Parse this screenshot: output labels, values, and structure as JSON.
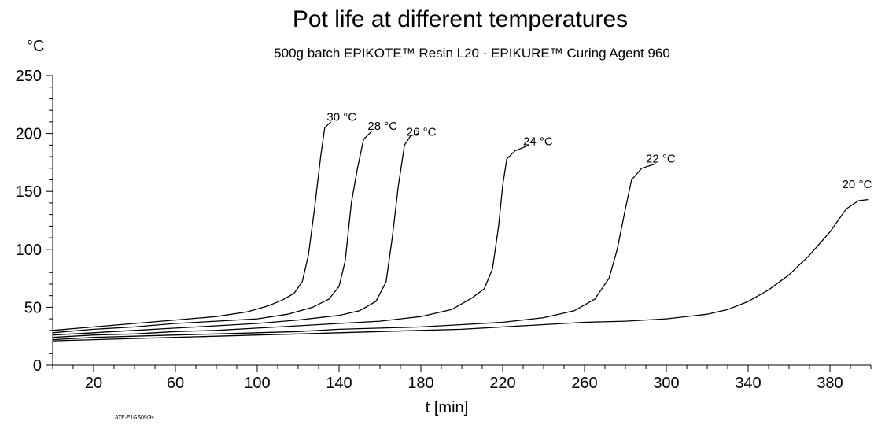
{
  "chart_data": {
    "type": "line",
    "title": "Pot life at different temperatures",
    "subtitle": "500g batch EPIKOTE™ Resin L20 - EPIKURE™ Curing Agent 960",
    "xlabel": "t [min]",
    "ylabel": "°C",
    "xlim": [
      0,
      400
    ],
    "ylim": [
      0,
      250
    ],
    "x_ticks": [
      20,
      60,
      100,
      140,
      180,
      220,
      260,
      300,
      340,
      380
    ],
    "y_ticks": [
      0,
      50,
      100,
      150,
      200,
      250
    ],
    "grid": false,
    "legend": "none",
    "footnote": "ATE-E1GS09/9s",
    "series": [
      {
        "name": "30 °C",
        "label_at": [
          134,
          211
        ],
        "points": [
          [
            0,
            30
          ],
          [
            20,
            33
          ],
          [
            40,
            36
          ],
          [
            60,
            39
          ],
          [
            80,
            42
          ],
          [
            95,
            46
          ],
          [
            105,
            51
          ],
          [
            112,
            56
          ],
          [
            118,
            62
          ],
          [
            122,
            72
          ],
          [
            125,
            95
          ],
          [
            128,
            135
          ],
          [
            131,
            180
          ],
          [
            133,
            205
          ],
          [
            136,
            210
          ]
        ]
      },
      {
        "name": "28 °C",
        "label_at": [
          154,
          203
        ],
        "points": [
          [
            0,
            28
          ],
          [
            20,
            31
          ],
          [
            40,
            33
          ],
          [
            60,
            36
          ],
          [
            80,
            38
          ],
          [
            100,
            40
          ],
          [
            115,
            44
          ],
          [
            127,
            50
          ],
          [
            135,
            57
          ],
          [
            140,
            68
          ],
          [
            143,
            90
          ],
          [
            146,
            140
          ],
          [
            149,
            170
          ],
          [
            152,
            195
          ],
          [
            156,
            202
          ]
        ]
      },
      {
        "name": "26 °C",
        "label_at": [
          173,
          198
        ],
        "points": [
          [
            0,
            26
          ],
          [
            20,
            28
          ],
          [
            40,
            30
          ],
          [
            60,
            32
          ],
          [
            80,
            34
          ],
          [
            100,
            36
          ],
          [
            120,
            39
          ],
          [
            140,
            43
          ],
          [
            150,
            47
          ],
          [
            158,
            55
          ],
          [
            163,
            72
          ],
          [
            166,
            110
          ],
          [
            169,
            155
          ],
          [
            172,
            190
          ],
          [
            175,
            198
          ],
          [
            179,
            200
          ]
        ]
      },
      {
        "name": "24 °C",
        "label_at": [
          230,
          190
        ],
        "points": [
          [
            0,
            24
          ],
          [
            20,
            26
          ],
          [
            40,
            27
          ],
          [
            60,
            29
          ],
          [
            80,
            30
          ],
          [
            100,
            32
          ],
          [
            120,
            34
          ],
          [
            140,
            36
          ],
          [
            160,
            38
          ],
          [
            180,
            42
          ],
          [
            195,
            48
          ],
          [
            205,
            58
          ],
          [
            211,
            66
          ],
          [
            215,
            83
          ],
          [
            218,
            120
          ],
          [
            220,
            155
          ],
          [
            222,
            178
          ],
          [
            226,
            185
          ],
          [
            233,
            190
          ]
        ]
      },
      {
        "name": "22 °C",
        "label_at": [
          290,
          175
        ],
        "points": [
          [
            0,
            22
          ],
          [
            20,
            24
          ],
          [
            40,
            25
          ],
          [
            60,
            26
          ],
          [
            80,
            27
          ],
          [
            100,
            28
          ],
          [
            120,
            29
          ],
          [
            140,
            31
          ],
          [
            160,
            32
          ],
          [
            180,
            33
          ],
          [
            200,
            35
          ],
          [
            220,
            37
          ],
          [
            240,
            41
          ],
          [
            255,
            47
          ],
          [
            265,
            57
          ],
          [
            272,
            75
          ],
          [
            276,
            100
          ],
          [
            280,
            135
          ],
          [
            283,
            160
          ],
          [
            288,
            170
          ],
          [
            295,
            174
          ]
        ]
      },
      {
        "name": "20 °C",
        "label_at": [
          386,
          153
        ],
        "points": [
          [
            0,
            21
          ],
          [
            20,
            22
          ],
          [
            40,
            23
          ],
          [
            60,
            24
          ],
          [
            80,
            25
          ],
          [
            100,
            26
          ],
          [
            120,
            27
          ],
          [
            140,
            28
          ],
          [
            160,
            29
          ],
          [
            180,
            30
          ],
          [
            200,
            31
          ],
          [
            220,
            33
          ],
          [
            240,
            35
          ],
          [
            260,
            37
          ],
          [
            280,
            38
          ],
          [
            300,
            40
          ],
          [
            320,
            44
          ],
          [
            330,
            48
          ],
          [
            340,
            55
          ],
          [
            350,
            65
          ],
          [
            360,
            78
          ],
          [
            370,
            95
          ],
          [
            380,
            115
          ],
          [
            388,
            135
          ],
          [
            394,
            142
          ],
          [
            399,
            143
          ]
        ]
      }
    ]
  }
}
